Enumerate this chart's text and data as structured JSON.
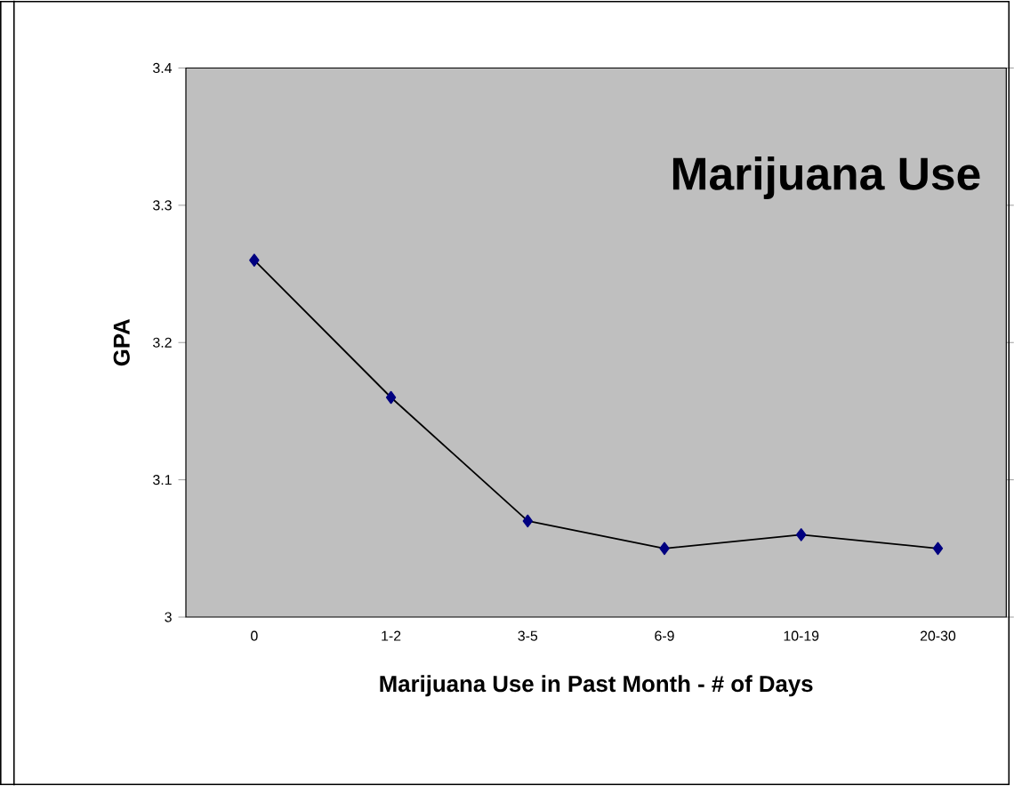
{
  "chart_data": {
    "type": "line",
    "title": "Marijuana Use",
    "xlabel": "Marijuana Use in Past Month - # of Days",
    "ylabel": "GPA",
    "categories": [
      "0",
      "1-2",
      "3-5",
      "6-9",
      "10-19",
      "20-30"
    ],
    "series": [
      {
        "color": "#000080",
        "values": [
          3.26,
          3.16,
          3.07,
          3.05,
          3.06,
          3.05
        ]
      }
    ],
    "ylim": [
      3,
      3.4
    ],
    "yticks": [
      3,
      3.1,
      3.2,
      3.3,
      3.4
    ],
    "marker": "diamond",
    "line_style": "solid",
    "grid": false
  }
}
